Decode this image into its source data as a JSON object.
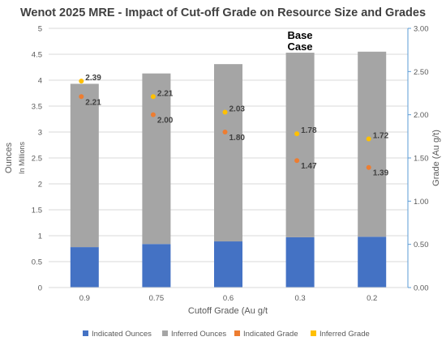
{
  "chart_data": {
    "type": "bar",
    "title": "Wenot 2025 MRE - Impact of Cut-off Grade on Resource Size and Grades",
    "xlabel": "Cutoff Grade (Au g/t",
    "ylabel": "Ounces",
    "ylabel_sub": "In Millions",
    "y2label": "Grade (Au g/t)",
    "categories": [
      "0.9",
      "0.75",
      "0.6",
      "0.3",
      "0.2"
    ],
    "ylim": [
      0,
      5
    ],
    "yticks": [
      "0",
      "0.5",
      "1",
      "1.5",
      "2",
      "2.5",
      "3",
      "3.5",
      "4",
      "4.5",
      "5"
    ],
    "y2lim": [
      0,
      3
    ],
    "y2ticks": [
      "0.00",
      "0.50",
      "1.00",
      "1.50",
      "2.00",
      "2.50",
      "3.00"
    ],
    "stacked": true,
    "grid": true,
    "legend_position": "bottom",
    "series": [
      {
        "name": "Indicated Ounces",
        "kind": "bar",
        "axis": "left",
        "color": "#4472c4",
        "values": [
          0.78,
          0.84,
          0.89,
          0.97,
          0.98
        ]
      },
      {
        "name": "Inferred Ounces",
        "kind": "bar",
        "axis": "left",
        "color": "#a5a5a5",
        "values": [
          3.15,
          3.29,
          3.42,
          3.56,
          3.57
        ]
      },
      {
        "name": "Indicated Grade",
        "kind": "point",
        "axis": "right",
        "color": "#ed7d31",
        "values": [
          2.21,
          2.0,
          1.8,
          1.47,
          1.39
        ],
        "labels": [
          "2.21",
          "2.00",
          "1.80",
          "1.47",
          "1.39"
        ]
      },
      {
        "name": "Inferred Grade",
        "kind": "point",
        "axis": "right",
        "color": "#ffc000",
        "values": [
          2.39,
          2.21,
          2.03,
          1.78,
          1.72
        ],
        "labels": [
          "2.39",
          "2.21",
          "2.03",
          "1.78",
          "1.72"
        ]
      }
    ],
    "annotation": {
      "category": "0.3",
      "text_line1": "Base",
      "text_line2": "Case"
    }
  }
}
